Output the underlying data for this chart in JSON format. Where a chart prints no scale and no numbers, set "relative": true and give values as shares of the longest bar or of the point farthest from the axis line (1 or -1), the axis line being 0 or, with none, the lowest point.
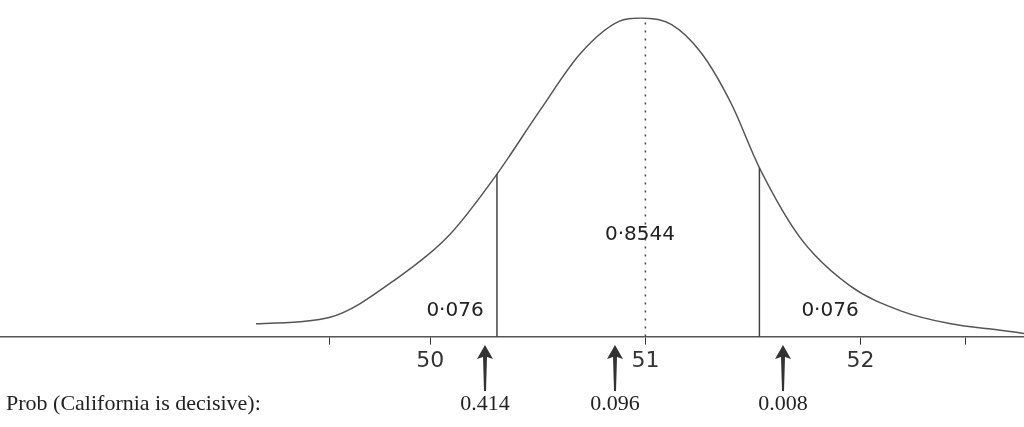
{
  "chart_data": {
    "type": "line",
    "relative": true,
    "marker": "none",
    "grid": false,
    "legend": false,
    "xlim": [
      48.0,
      52.76
    ],
    "xticks": [
      {
        "value": 49.53,
        "label": null
      },
      50,
      51,
      52,
      {
        "value": 52.49,
        "label": null
      }
    ],
    "series": [
      {
        "color": "#555555",
        "x": [
          49.19,
          49.53,
          49.86,
          50.09,
          50.31,
          50.51,
          50.7,
          50.88,
          50.98,
          51.12,
          51.26,
          51.4,
          51.53,
          51.72,
          51.95,
          52.19,
          52.42,
          52.65,
          52.76
        ],
        "values": [
          0.04,
          0.06,
          0.19,
          0.32,
          0.51,
          0.71,
          0.89,
          0.99,
          1.0,
          0.98,
          0.89,
          0.73,
          0.53,
          0.31,
          0.16,
          0.08,
          0.04,
          0.02,
          0.01
        ]
      }
    ],
    "ref_lines": [
      {
        "axis": "x",
        "value": 50.31,
        "color": "#444444",
        "line_style": "solid"
      },
      {
        "axis": "x",
        "value": 51.53,
        "color": "#444444",
        "line_style": "solid"
      },
      {
        "axis": "x",
        "value": 51.0,
        "color": "#444444",
        "line_style": "dotted"
      }
    ],
    "annotations": [
      "0·076",
      "0·8544",
      "0·076",
      "Prob (California is decisive):",
      "0.414",
      "0.096",
      "0.008"
    ]
  }
}
